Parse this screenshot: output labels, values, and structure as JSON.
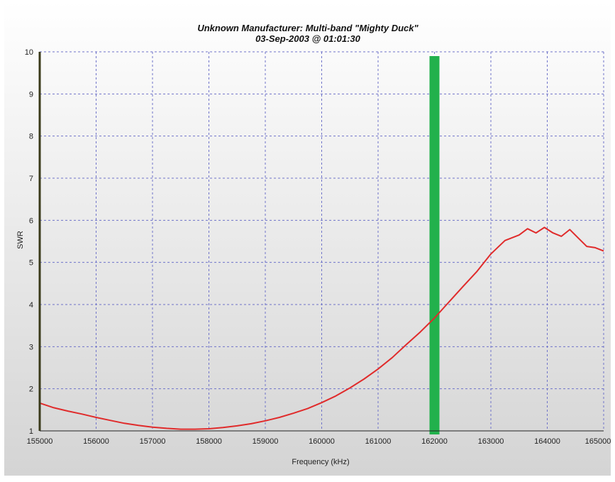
{
  "chart_data": {
    "type": "line",
    "title": "Unknown Manufacturer: Multi-band \"Mighty Duck\"",
    "subtitle": "03-Sep-2003 @ 01:01:30",
    "xlabel": "Frequency (kHz)",
    "ylabel": "SWR",
    "xlim": [
      155000,
      165000
    ],
    "ylim": [
      1,
      10
    ],
    "x_ticks": [
      "155000",
      "156000",
      "157000",
      "158000",
      "159000",
      "160000",
      "161000",
      "162000",
      "163000",
      "164000",
      "165000"
    ],
    "y_ticks": [
      "1",
      "2",
      "3",
      "4",
      "5",
      "6",
      "7",
      "8",
      "9",
      "10"
    ],
    "grid": true,
    "colors": {
      "series": "#e02b2b",
      "marker": "#22b14c",
      "grid": "#6f73c9",
      "background_top": "#ffffff",
      "background_bottom": "#d4d4d4"
    },
    "marker_line": {
      "x": 162000
    },
    "series": [
      {
        "x": [
          155000,
          155250,
          155500,
          155750,
          156000,
          156250,
          156500,
          156750,
          157000,
          157250,
          157500,
          157750,
          158000,
          158250,
          158500,
          158750,
          159000,
          159250,
          159500,
          159750,
          160000,
          160250,
          160500,
          160750,
          161000,
          161250,
          161500,
          161750,
          162000,
          162250,
          162500,
          162750,
          163000,
          163250,
          163500,
          163650,
          163800,
          163950,
          164100,
          164250,
          164400,
          164550,
          164700,
          164850,
          165000
        ],
        "values": [
          1.66,
          1.55,
          1.47,
          1.4,
          1.32,
          1.25,
          1.18,
          1.13,
          1.09,
          1.06,
          1.04,
          1.04,
          1.05,
          1.08,
          1.12,
          1.17,
          1.24,
          1.32,
          1.42,
          1.53,
          1.67,
          1.83,
          2.02,
          2.23,
          2.47,
          2.74,
          3.05,
          3.35,
          3.68,
          4.05,
          4.42,
          4.78,
          5.2,
          5.52,
          5.65,
          5.8,
          5.7,
          5.83,
          5.7,
          5.62,
          5.78,
          5.58,
          5.38,
          5.35,
          5.27
        ]
      }
    ]
  }
}
